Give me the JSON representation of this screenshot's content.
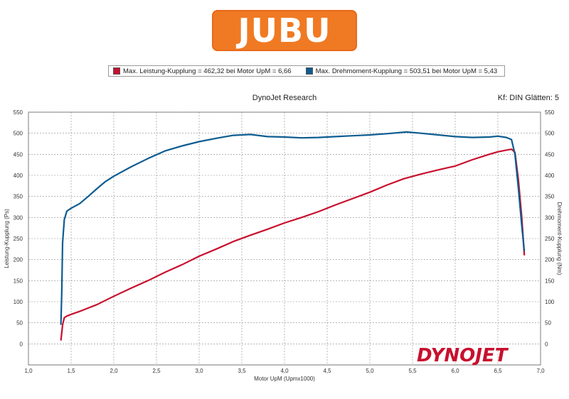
{
  "logo": {
    "text": "JUBU",
    "color": "#f07a23"
  },
  "legend": [
    {
      "label": "Max. Leistung-Kupplung = 462,32 bei Motor UpM = 6,66",
      "color": "#c8102e"
    },
    {
      "label": "Max. Drehmoment-Kupplung = 503,51 bei Motor UpM = 5,43",
      "color": "#0d5c91"
    }
  ],
  "title": "DynoJet Research",
  "info": "Kf: DIN Glätten: 5",
  "brand": {
    "text": "DYNOJET",
    "color": "#c8102e"
  },
  "chart_data": {
    "type": "line",
    "xlabel": "Motor UpM (Upmx1000)",
    "ylabel_left": "Leistung-Kupplung (Ps)",
    "ylabel_right": "Drehmoment-Kupplung (Nm)",
    "xlim": [
      1.0,
      7.0
    ],
    "ylim": [
      -50,
      550
    ],
    "grid": true,
    "x_ticks": [
      "1,0",
      "1,5",
      "2,0",
      "2,5",
      "3,0",
      "3,5",
      "4,0",
      "4,5",
      "5,0",
      "5,5",
      "6,0",
      "6,5",
      "7,0"
    ],
    "y_ticks": [
      "0",
      "50",
      "100",
      "150",
      "200",
      "250",
      "300",
      "350",
      "400",
      "450",
      "500",
      "550"
    ],
    "series": [
      {
        "name": "Leistung-Kupplung",
        "color": "#c8102e",
        "points": [
          [
            1.38,
            8
          ],
          [
            1.4,
            45
          ],
          [
            1.42,
            62
          ],
          [
            1.45,
            66
          ],
          [
            1.5,
            70
          ],
          [
            1.6,
            77
          ],
          [
            1.7,
            85
          ],
          [
            1.8,
            93
          ],
          [
            1.9,
            103
          ],
          [
            2.0,
            113
          ],
          [
            2.2,
            132
          ],
          [
            2.4,
            150
          ],
          [
            2.6,
            170
          ],
          [
            2.8,
            188
          ],
          [
            3.0,
            208
          ],
          [
            3.2,
            225
          ],
          [
            3.4,
            243
          ],
          [
            3.6,
            258
          ],
          [
            3.8,
            272
          ],
          [
            4.0,
            287
          ],
          [
            4.2,
            300
          ],
          [
            4.4,
            314
          ],
          [
            4.6,
            330
          ],
          [
            4.8,
            345
          ],
          [
            5.0,
            360
          ],
          [
            5.2,
            377
          ],
          [
            5.4,
            392
          ],
          [
            5.6,
            403
          ],
          [
            5.8,
            413
          ],
          [
            6.0,
            422
          ],
          [
            6.2,
            437
          ],
          [
            6.4,
            450
          ],
          [
            6.5,
            456
          ],
          [
            6.6,
            460
          ],
          [
            6.66,
            462
          ],
          [
            6.7,
            455
          ],
          [
            6.74,
            390
          ],
          [
            6.78,
            300
          ],
          [
            6.81,
            210
          ]
        ]
      },
      {
        "name": "Drehmoment-Kupplung",
        "color": "#0d5c91",
        "points": [
          [
            1.38,
            45
          ],
          [
            1.39,
            120
          ],
          [
            1.4,
            240
          ],
          [
            1.42,
            295
          ],
          [
            1.45,
            315
          ],
          [
            1.5,
            322
          ],
          [
            1.6,
            333
          ],
          [
            1.7,
            350
          ],
          [
            1.8,
            368
          ],
          [
            1.9,
            385
          ],
          [
            2.0,
            398
          ],
          [
            2.2,
            420
          ],
          [
            2.4,
            440
          ],
          [
            2.6,
            458
          ],
          [
            2.8,
            470
          ],
          [
            3.0,
            480
          ],
          [
            3.2,
            488
          ],
          [
            3.4,
            495
          ],
          [
            3.6,
            497
          ],
          [
            3.8,
            492
          ],
          [
            4.0,
            491
          ],
          [
            4.2,
            489
          ],
          [
            4.4,
            490
          ],
          [
            4.6,
            492
          ],
          [
            4.8,
            494
          ],
          [
            5.0,
            496
          ],
          [
            5.2,
            499
          ],
          [
            5.43,
            503
          ],
          [
            5.6,
            500
          ],
          [
            5.8,
            496
          ],
          [
            6.0,
            492
          ],
          [
            6.2,
            490
          ],
          [
            6.4,
            491
          ],
          [
            6.5,
            493
          ],
          [
            6.6,
            490
          ],
          [
            6.66,
            485
          ],
          [
            6.7,
            450
          ],
          [
            6.74,
            370
          ],
          [
            6.78,
            280
          ],
          [
            6.81,
            220
          ]
        ]
      }
    ]
  }
}
